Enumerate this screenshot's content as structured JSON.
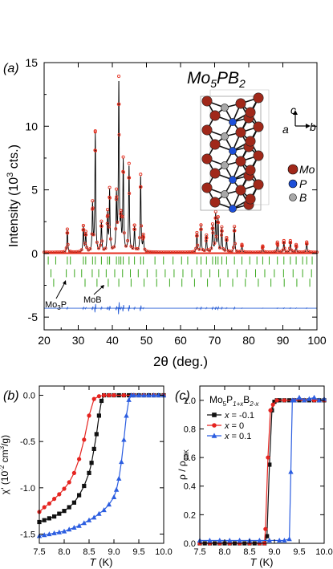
{
  "figure": {
    "panels": [
      "(a)",
      "(b)",
      "(c)"
    ]
  },
  "chart_data": [
    {
      "type": "line",
      "panel": "(a)",
      "title_parts": {
        "base": "Mo",
        "s1": "5",
        "mid": "PB",
        "s2": "2"
      },
      "xlabel": "2θ (deg.)",
      "ylabel": "Intensity (10³ cts.)",
      "xlim": [
        20,
        100
      ],
      "ylim": [
        -6,
        15
      ],
      "x_ticks": [
        20,
        30,
        40,
        50,
        60,
        70,
        80,
        90,
        100
      ],
      "y_ticks": [
        -5,
        0,
        5,
        10,
        15
      ],
      "axis_label_x": {
        "text": "2θ (deg.)"
      },
      "axis_label_y": {
        "text": "Intensity (10",
        "sup": "3",
        "end": " cts.)"
      },
      "annotations": [
        {
          "base": "Mo",
          "sub": "3",
          "end": "P",
          "arrow_to_x": 26.5
        },
        {
          "base": "MoB",
          "sub": "",
          "end": "",
          "arrow_to_x": 32.0
        }
      ],
      "structure_inset": {
        "legend": [
          {
            "label": "Mo",
            "color": "#a0281a"
          },
          {
            "label": "P",
            "color": "#1d4fd8"
          },
          {
            "label": "B",
            "color": "#a8a8a8"
          }
        ],
        "axes_labels": {
          "c": "c",
          "a": "a",
          "b": "b"
        }
      },
      "series": [
        {
          "role": "observed",
          "color": "#e53020",
          "peaks": [
            [
              26.8,
              1.8
            ],
            [
              31.5,
              2.0
            ],
            [
              32.2,
              1.5
            ],
            [
              34.2,
              3.7
            ],
            [
              35.0,
              9.3
            ],
            [
              36.8,
              2.3
            ],
            [
              38.6,
              3.0
            ],
            [
              39.2,
              4.8
            ],
            [
              41.2,
              4.3
            ],
            [
              41.9,
              13.3
            ],
            [
              42.5,
              2.2
            ],
            [
              43.2,
              7.1
            ],
            [
              44.9,
              6.8
            ],
            [
              46.5,
              2.0
            ],
            [
              48.3,
              6.0
            ],
            [
              49.1,
              1.2
            ],
            [
              64.8,
              1.5
            ],
            [
              66.0,
              2.1
            ],
            [
              67.6,
              1.3
            ],
            [
              69.4,
              2.1
            ],
            [
              70.3,
              3.0
            ],
            [
              71.0,
              2.6
            ],
            [
              72.1,
              1.9
            ],
            [
              73.5,
              1.1
            ],
            [
              75.8,
              2.0
            ],
            [
              78.0,
              0.6
            ],
            [
              84.1,
              0.5
            ],
            [
              88.4,
              0.8
            ],
            [
              90.3,
              0.9
            ],
            [
              92.2,
              0.9
            ],
            [
              93.9,
              0.6
            ],
            [
              97.0,
              0.8
            ]
          ]
        },
        {
          "role": "calculated",
          "color": "#000000"
        },
        {
          "role": "difference",
          "color": "#2a5fd6",
          "offset": -4.3
        },
        {
          "role": "bragg",
          "color": "#3aa81e",
          "rows": [
            {
              "offset": -0.55,
              "positions": [
                21.2,
                23.4,
                26.8,
                27.7,
                31.5,
                32.2,
                34.2,
                35.0,
                36.8,
                38.6,
                39.2,
                41.2,
                41.9,
                42.5,
                43.2,
                44.9,
                46.5,
                48.3,
                49.1,
                52.5,
                55.0,
                57.8,
                60.3,
                62.1,
                64.8,
                66.0,
                67.6,
                69.4,
                70.3,
                71.0,
                72.1,
                73.5,
                75.8,
                78.0,
                80.3,
                82.4,
                84.1,
                86.0,
                88.4,
                90.3,
                92.2,
                93.9,
                95.8,
                97.0,
                98.6
              ]
            },
            {
              "offset": -1.55,
              "positions": [
                22.0,
                26.5,
                28.9,
                31.0,
                34.1,
                36.0,
                38.2,
                40.7,
                43.0,
                45.3,
                47.6,
                50.2,
                52.9,
                55.5,
                58.1,
                60.7,
                63.3,
                66.0,
                68.6,
                71.2,
                73.9,
                76.6,
                79.3,
                82.0,
                84.7,
                87.5,
                90.2,
                93.0,
                95.8,
                98.4
              ]
            },
            {
              "offset": -2.3,
              "positions": [
                22.8,
                32.0,
                35.5,
                38.8,
                41.9,
                45.5,
                49.3,
                53.0,
                56.8,
                60.4,
                64.1,
                67.9,
                71.6,
                75.3,
                79.0,
                82.8,
                86.5,
                90.4,
                94.1,
                97.9
              ]
            }
          ]
        }
      ]
    },
    {
      "type": "scatter",
      "panel": "(b)",
      "xlabel": "T (K)",
      "ylabel": "χ' (10⁻² cm³/g)",
      "axis_label_x": {
        "var": "T",
        "unit": " (K)"
      },
      "axis_label_y": {
        "sym": "χ' (10",
        "sup1": "-2",
        "mid": " cm",
        "sup2": "3",
        "end": "/g)"
      },
      "xlim": [
        7.5,
        10.0
      ],
      "ylim": [
        -1.6,
        0.1
      ],
      "x_ticks": [
        "7.5",
        "8.0",
        "8.5",
        "9.0",
        "9.5",
        "10.0"
      ],
      "y_ticks": [
        "0.0",
        "-0.5",
        "-1.0",
        "-1.5"
      ],
      "series": [
        {
          "label": "x = -0.1",
          "color": "#111111",
          "marker": "square",
          "x": [
            7.5,
            7.6,
            7.7,
            7.8,
            7.9,
            8.0,
            8.1,
            8.2,
            8.3,
            8.4,
            8.5,
            8.55,
            8.6,
            8.65,
            8.7,
            8.75,
            8.8,
            8.9,
            9.0,
            9.1,
            9.2,
            9.3,
            9.4,
            9.5,
            9.6,
            9.7,
            9.8,
            9.9,
            10.0
          ],
          "y": [
            -1.37,
            -1.35,
            -1.33,
            -1.31,
            -1.28,
            -1.25,
            -1.21,
            -1.16,
            -1.08,
            -0.98,
            -0.84,
            -0.73,
            -0.58,
            -0.42,
            -0.22,
            -0.06,
            0.0,
            0.0,
            0.0,
            0.0,
            0.0,
            0.0,
            0.0,
            0.0,
            0.0,
            0.0,
            0.0,
            0.0,
            0.0
          ]
        },
        {
          "label": "x = 0",
          "color": "#e52420",
          "marker": "circle",
          "x": [
            7.5,
            7.6,
            7.7,
            7.8,
            7.9,
            8.0,
            8.1,
            8.2,
            8.3,
            8.4,
            8.5,
            8.6,
            8.7,
            8.8,
            8.9,
            9.0,
            9.2,
            9.4,
            9.6,
            9.8,
            10.0
          ],
          "y": [
            -1.26,
            -1.21,
            -1.17,
            -1.12,
            -1.07,
            -1.01,
            -0.94,
            -0.84,
            -0.69,
            -0.48,
            -0.22,
            -0.04,
            -0.01,
            0.0,
            0.0,
            0.0,
            0.0,
            0.0,
            0.0,
            0.0,
            0.0
          ]
        },
        {
          "label": "x = 0.1",
          "color": "#2b5de0",
          "marker": "triangle",
          "x": [
            7.5,
            7.6,
            7.7,
            7.8,
            7.9,
            8.0,
            8.1,
            8.2,
            8.3,
            8.4,
            8.5,
            8.6,
            8.7,
            8.8,
            8.9,
            9.0,
            9.05,
            9.1,
            9.15,
            9.2,
            9.25,
            9.3,
            9.35,
            9.4,
            9.5,
            9.6,
            9.7,
            9.8,
            9.9,
            10.0
          ],
          "y": [
            -1.52,
            -1.51,
            -1.5,
            -1.49,
            -1.48,
            -1.47,
            -1.45,
            -1.43,
            -1.41,
            -1.38,
            -1.35,
            -1.32,
            -1.28,
            -1.24,
            -1.18,
            -1.1,
            -1.02,
            -0.9,
            -0.72,
            -0.48,
            -0.22,
            -0.05,
            0.0,
            0.0,
            0.0,
            0.0,
            0.0,
            0.0,
            0.0,
            0.0
          ]
        }
      ]
    },
    {
      "type": "line",
      "panel": "(c)",
      "xlabel": "T (K)",
      "ylabel": "ρ / ρ10K",
      "axis_label_x": {
        "var": "T",
        "unit": " (K)"
      },
      "axis_label_y": {
        "sym": "ρ / ρ",
        "sub": "10K"
      },
      "xlim": [
        7.5,
        10.0
      ],
      "ylim": [
        0.0,
        1.1
      ],
      "x_ticks": [
        "7.5",
        "8.0",
        "8.5",
        "9.0",
        "9.5",
        "10.0"
      ],
      "y_ticks": [
        "0.0",
        "0.2",
        "0.4",
        "0.6",
        "0.8",
        "1.0"
      ],
      "legend_title": {
        "a": "Mo",
        "s1": "5",
        "b": "P",
        "s2": "1+x",
        "c": "B",
        "s3": "2-x"
      },
      "series": [
        {
          "label": "-0.1",
          "color": "#111111",
          "marker": "square",
          "x": [
            7.5,
            7.6,
            7.7,
            7.8,
            7.9,
            8.0,
            8.1,
            8.2,
            8.3,
            8.4,
            8.5,
            8.6,
            8.7,
            8.8,
            8.85,
            8.9,
            8.95,
            9.0,
            9.05,
            9.1,
            9.2,
            9.3,
            9.4,
            9.5,
            9.6,
            9.7,
            9.8,
            9.9,
            10.0
          ],
          "y": [
            0.0,
            0.0,
            0.0,
            0.0,
            0.0,
            0.0,
            0.0,
            0.0,
            0.0,
            0.0,
            0.0,
            0.0,
            0.0,
            0.0,
            0.05,
            0.55,
            0.93,
            0.99,
            1.0,
            1.0,
            1.0,
            1.0,
            1.0,
            1.0,
            1.0,
            1.0,
            1.0,
            1.0,
            1.0
          ]
        },
        {
          "label": "0",
          "color": "#e52420",
          "marker": "circle",
          "x": [
            7.5,
            7.7,
            7.9,
            8.1,
            8.3,
            8.5,
            8.7,
            8.8,
            8.82,
            8.87,
            8.92,
            8.97,
            9.05,
            9.2,
            9.4,
            9.6,
            9.8,
            10.0
          ],
          "y": [
            0.0,
            0.0,
            0.0,
            0.0,
            0.0,
            0.0,
            0.0,
            0.0,
            0.1,
            0.6,
            0.93,
            0.97,
            1.0,
            1.0,
            1.0,
            1.0,
            1.0,
            1.0
          ]
        },
        {
          "label": "0.1",
          "color": "#2b5de0",
          "marker": "triangle",
          "x": [
            7.5,
            7.7,
            7.9,
            8.1,
            8.3,
            8.5,
            8.7,
            8.9,
            9.1,
            9.2,
            9.3,
            9.33,
            9.36,
            9.4,
            9.5,
            9.6,
            9.7,
            9.8,
            9.9,
            10.0
          ],
          "y": [
            0.02,
            0.02,
            0.02,
            0.02,
            0.02,
            0.02,
            0.02,
            0.02,
            0.02,
            0.02,
            0.03,
            0.5,
            1.0,
            1.0,
            1.02,
            1.0,
            1.01,
            1.02,
            1.0,
            1.01
          ]
        }
      ]
    }
  ]
}
